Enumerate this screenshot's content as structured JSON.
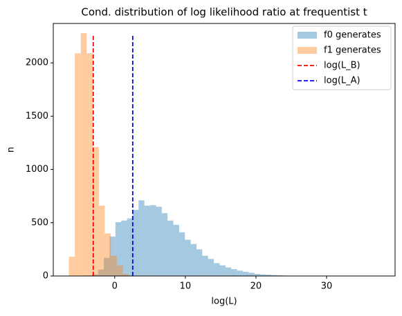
{
  "chart_data": {
    "type": "histogram",
    "title": "Cond. distribution of log likelihood ratio at frequentist  t",
    "xlabel": "log(L)",
    "ylabel": "n",
    "xlim": [
      -8.7,
      39.7
    ],
    "ylim": [
      0,
      2370
    ],
    "xticks": [
      0,
      10,
      20,
      30
    ],
    "yticks": [
      0,
      500,
      1000,
      1500,
      2000
    ],
    "legend": "upper right",
    "series": [
      {
        "name": "f0 generates",
        "color": "#1f77b4",
        "bins": [
          -4.0,
          -3.18,
          -2.36,
          -1.54,
          -0.72,
          0.1,
          0.92,
          1.74,
          2.56,
          3.38,
          4.2,
          5.02,
          5.84,
          6.66,
          7.48,
          8.3,
          9.12,
          9.94,
          10.76,
          11.58,
          12.4,
          13.22,
          14.04,
          14.86,
          15.68,
          16.5,
          17.32,
          18.14,
          18.96,
          19.78,
          20.6,
          21.42,
          22.24,
          23.06,
          23.88,
          24.7,
          25.52,
          26.34,
          27.16,
          27.98,
          28.8,
          29.62,
          30.44,
          31.26,
          32.08,
          32.9,
          33.72,
          34.54,
          35.36,
          36.18,
          37.0
        ],
        "values": [
          5,
          15,
          60,
          170,
          370,
          505,
          520,
          540,
          620,
          710,
          660,
          665,
          650,
          590,
          520,
          480,
          410,
          340,
          300,
          250,
          190,
          160,
          120,
          100,
          80,
          65,
          50,
          40,
          30,
          20,
          15,
          12,
          8,
          6,
          4,
          3,
          2,
          2,
          1,
          1,
          1,
          1,
          0,
          0,
          0,
          0,
          0,
          0,
          0,
          1
        ]
      },
      {
        "name": "f1 generates",
        "color": "#ff7f0e",
        "bins": [
          -6.5,
          -5.65,
          -4.8,
          -3.95,
          -3.1,
          -2.25,
          -1.4,
          -0.55,
          0.3,
          1.15,
          2.0
        ],
        "values": [
          180,
          2090,
          2280,
          2090,
          1210,
          660,
          400,
          190,
          100,
          20
        ]
      }
    ],
    "vlines": [
      {
        "name": "log(L_B)",
        "x": -3.04,
        "ymax": 2270,
        "color": "#ff0000"
      },
      {
        "name": "log(L_A)",
        "x": 2.55,
        "ymax": 2270,
        "color": "#0000ff"
      }
    ]
  }
}
